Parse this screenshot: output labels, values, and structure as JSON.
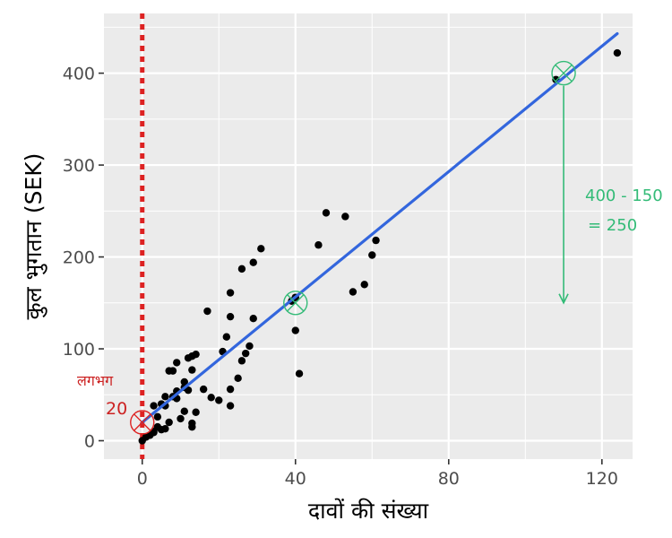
{
  "chart_data": {
    "type": "scatter",
    "title": "",
    "xlabel": "दावों की संख्या",
    "ylabel": "कुल भुगतान (SEK)",
    "xlim": [
      -10,
      128
    ],
    "ylim": [
      -20,
      465
    ],
    "x_ticks": [
      0,
      40,
      80,
      120
    ],
    "y_ticks": [
      0,
      100,
      200,
      300,
      400
    ],
    "grid": true,
    "legend": "none",
    "colors": {
      "panel": "#ebebeb",
      "grid": "#ffffff",
      "points": "#000000",
      "fit_line": "#3366dd",
      "intercept_marker": "#dd2222",
      "annotation_green": "#33bb77"
    },
    "points": {
      "x": [
        108,
        124,
        48,
        53,
        61,
        60,
        58,
        55,
        46,
        41,
        40,
        39,
        40,
        31,
        29,
        26,
        29,
        27,
        23,
        23,
        22,
        25,
        23,
        17,
        21,
        20,
        28,
        26,
        23,
        14,
        13,
        12,
        13,
        11,
        12,
        9,
        8,
        7,
        6,
        9,
        11,
        10,
        5,
        3,
        6,
        4,
        7,
        4,
        3,
        5,
        2,
        1,
        0,
        14,
        16,
        18,
        8,
        9,
        11,
        13,
        3,
        6,
        13
      ],
      "y": [
        393,
        422,
        248,
        244,
        218,
        202,
        170,
        162,
        213,
        73,
        120,
        152,
        156,
        209,
        194,
        187,
        133,
        95,
        161,
        135,
        113,
        68,
        56,
        141,
        97,
        44,
        103,
        87,
        38,
        94,
        92,
        90,
        77,
        58,
        55,
        85,
        76,
        76,
        48,
        46,
        64,
        24,
        40,
        38,
        38,
        26,
        20,
        15,
        10,
        12,
        6,
        4,
        0,
        31,
        56,
        47,
        48,
        54,
        32,
        15,
        9,
        13,
        19
      ]
    },
    "fit_line": {
      "x": [
        0,
        124
      ],
      "y": [
        20,
        443
      ]
    },
    "reference_line": {
      "x": 0
    },
    "markers": [
      {
        "name": "intercept",
        "x": 0,
        "y": 20
      },
      {
        "name": "point-40",
        "x": 40,
        "y": 150
      },
      {
        "name": "point-110",
        "x": 110,
        "y": 400
      }
    ],
    "arrow": {
      "x": 110,
      "y_from": 400,
      "y_to": 150
    },
    "annotations": {
      "intercept_label_line1": "लगभग",
      "intercept_label_line2": "20",
      "difference_line1": "400 - 150",
      "difference_line2": "= 250"
    }
  }
}
